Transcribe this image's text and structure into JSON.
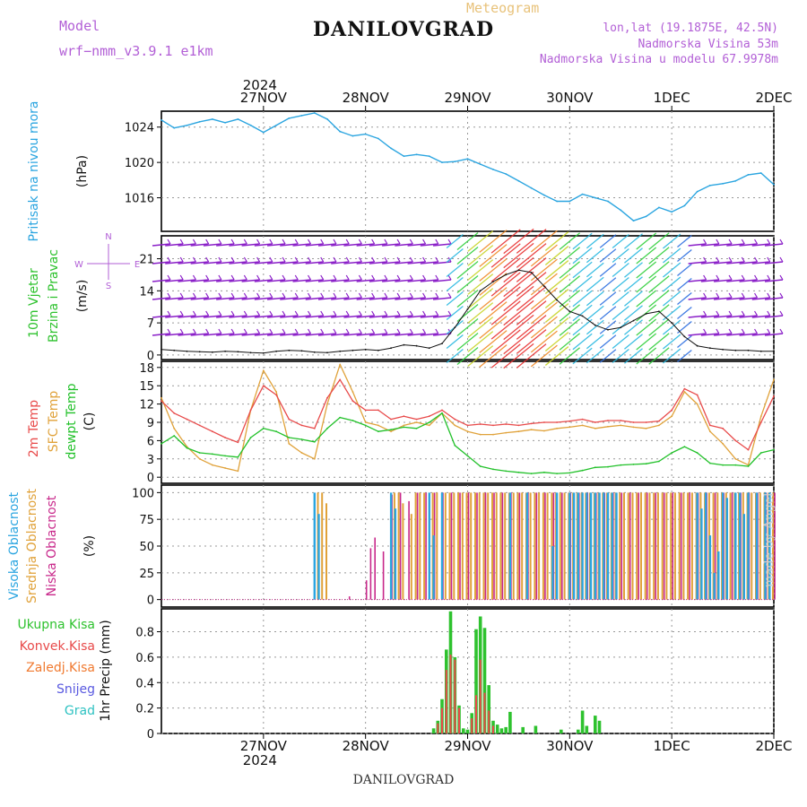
{
  "header": {
    "title": "DANILOVGRAD",
    "subtitle": "Meteogram",
    "model_label": "Model",
    "model_name": "wrf−nmm_v3.9.1  e1km",
    "location": "lon,lat (19.1875E, 42.5N)",
    "elevation": "Nadmorska Visina 53m",
    "model_elevation": "Nadmorska Visina u modelu 67.9978m"
  },
  "footer": {
    "label": "DANILOVGRAD"
  },
  "watermark": "made by Angel",
  "time_axis": {
    "year": "2024",
    "days": [
      "27NOV",
      "28NOV",
      "29NOV",
      "30NOV",
      "1DEC",
      "2DEC"
    ],
    "start_hours": -12,
    "end_hours": 132
  },
  "colors": {
    "pressure": "#2ba5e0",
    "t2m": "#e84a4a",
    "sfc": "#e0a23a",
    "dewpoint": "#22c12a",
    "high_cloud": "#2ba5e0",
    "mid_cloud": "#e0a23a",
    "low_cloud": "#c8278a",
    "total_precip": "#2ec22e",
    "conv_precip": "#e84a4a",
    "frozen_precip": "#f07a30",
    "snow": "#5a5ae0",
    "hail": "#2ec2c2"
  },
  "chart_data": [
    {
      "type": "line",
      "panel": "pressure",
      "ylabel_left": "Pritisak na nivou mora",
      "ylabel_unit": "(hPa)",
      "yticks": [
        "1024",
        "1020",
        "1016"
      ],
      "ylim": [
        1012.2,
        1025.8
      ],
      "x_hours": [
        -12,
        -9,
        -6,
        -3,
        0,
        3,
        6,
        9,
        12,
        15,
        18,
        21,
        24,
        27,
        30,
        33,
        36,
        39,
        42,
        45,
        48,
        51,
        54,
        57,
        60,
        63,
        66,
        69,
        72,
        75,
        78,
        81,
        84,
        87,
        90,
        93,
        96,
        99,
        102,
        105,
        108,
        111,
        114,
        117,
        120,
        123,
        126,
        129,
        132
      ],
      "series": [
        {
          "name": "Pritisak na nivou mora",
          "values": [
            1024.8,
            1023.9,
            1024.2,
            1024.6,
            1024.9,
            1024.5,
            1024.9,
            1024.2,
            1023.4,
            1024.2,
            1025.0,
            1025.3,
            1025.6,
            1024.9,
            1023.5,
            1023.0,
            1023.2,
            1022.7,
            1021.6,
            1020.7,
            1020.9,
            1020.7,
            1020.0,
            1020.1,
            1020.4,
            1019.8,
            1019.2,
            1018.7,
            1017.9,
            1017.1,
            1016.3,
            1015.6,
            1015.6,
            1016.4,
            1016.0,
            1015.6,
            1014.6,
            1013.4,
            1013.9,
            1014.9,
            1014.4,
            1015.1,
            1016.7,
            1017.4,
            1017.6,
            1017.9,
            1018.6,
            1018.8,
            1017.5
          ]
        }
      ]
    },
    {
      "type": "scatter",
      "panel": "wind",
      "ylabel_left": [
        "10m Vjetar",
        "Brzina i Pravac"
      ],
      "ylabel_unit": "(m/s)",
      "compass": {
        "n": "N",
        "s": "S",
        "e": "E",
        "w": "W"
      },
      "yticks": [
        "21",
        "14",
        "7",
        "0"
      ],
      "ylim": [
        -1,
        26
      ],
      "x_hours": [
        -12,
        -9,
        -6,
        -3,
        0,
        3,
        6,
        9,
        12,
        15,
        18,
        21,
        24,
        27,
        30,
        33,
        36,
        39,
        42,
        45,
        48,
        51,
        54,
        57,
        60,
        63,
        66,
        69,
        72,
        75,
        78,
        81,
        84,
        87,
        90,
        93,
        96,
        99,
        102,
        105,
        108,
        111,
        114,
        117,
        120,
        123,
        126,
        129,
        132
      ],
      "series": [
        {
          "name": "Brzina",
          "values": [
            1.2,
            1.0,
            0.8,
            0.7,
            0.6,
            0.8,
            0.7,
            0.5,
            0.4,
            0.8,
            1.0,
            0.9,
            0.6,
            0.5,
            0.8,
            1.0,
            1.2,
            1.0,
            1.5,
            2.2,
            2.0,
            1.5,
            2.5,
            6.0,
            10.0,
            14.0,
            16.0,
            17.5,
            18.5,
            18.0,
            15.0,
            12.0,
            9.5,
            8.5,
            6.5,
            5.5,
            6.0,
            7.5,
            9.0,
            9.5,
            7.0,
            4.0,
            2.0,
            1.5,
            1.2,
            1.0,
            1.0,
            0.8,
            0.8
          ]
        }
      ]
    },
    {
      "type": "line",
      "panel": "temperature",
      "ylabel_left": [
        "2m Temp",
        "SFC Temp",
        "dewpt Temp"
      ],
      "ylabel_unit": "(C)",
      "yticks": [
        "18",
        "15",
        "12",
        "9",
        "6",
        "3",
        "0"
      ],
      "ylim": [
        -1,
        19
      ],
      "x_hours": [
        -12,
        -9,
        -6,
        -3,
        0,
        3,
        6,
        9,
        12,
        15,
        18,
        21,
        24,
        27,
        30,
        33,
        36,
        39,
        42,
        45,
        48,
        51,
        54,
        57,
        60,
        63,
        66,
        69,
        72,
        75,
        78,
        81,
        84,
        87,
        90,
        93,
        96,
        99,
        102,
        105,
        108,
        111,
        114,
        117,
        120,
        123,
        126,
        129,
        132
      ],
      "series": [
        {
          "name": "2m Temp",
          "values": [
            12.5,
            10.5,
            9.5,
            8.5,
            7.5,
            6.5,
            5.7,
            11.0,
            15.0,
            13.5,
            9.5,
            8.5,
            8.0,
            13.0,
            16.0,
            12.5,
            11.0,
            11.0,
            9.5,
            10.0,
            9.5,
            10.0,
            11.0,
            9.5,
            8.5,
            8.7,
            8.5,
            8.7,
            8.5,
            8.8,
            9.0,
            9.0,
            9.2,
            9.5,
            9.0,
            9.3,
            9.3,
            9.0,
            9.0,
            9.2,
            11.0,
            14.5,
            13.5,
            8.5,
            8.0,
            6.0,
            4.5,
            9.0,
            13.3
          ]
        },
        {
          "name": "SFC Temp",
          "values": [
            13.0,
            8.0,
            5.0,
            3.0,
            2.0,
            1.5,
            1.0,
            11.0,
            17.5,
            14.0,
            5.5,
            4.0,
            3.0,
            12.0,
            18.5,
            14.0,
            9.0,
            8.5,
            7.5,
            8.5,
            9.0,
            8.5,
            10.5,
            8.5,
            7.5,
            7.0,
            7.0,
            7.3,
            7.5,
            7.8,
            7.6,
            8.0,
            8.2,
            8.5,
            8.0,
            8.3,
            8.5,
            8.2,
            8.0,
            8.5,
            10.0,
            14.0,
            12.0,
            7.5,
            5.5,
            3.0,
            2.0,
            10.0,
            16.0
          ]
        },
        {
          "name": "dewpt Temp",
          "values": [
            5.5,
            6.8,
            4.8,
            4.0,
            3.8,
            3.5,
            3.3,
            6.5,
            8.0,
            7.5,
            6.5,
            6.2,
            5.8,
            8.0,
            9.8,
            9.3,
            8.5,
            7.5,
            7.8,
            8.2,
            8.0,
            9.0,
            10.5,
            5.2,
            3.5,
            1.8,
            1.3,
            1.0,
            0.8,
            0.6,
            0.8,
            0.6,
            0.7,
            1.1,
            1.6,
            1.7,
            2.0,
            2.1,
            2.2,
            2.6,
            4.0,
            5.0,
            4.0,
            2.3,
            2.0,
            2.0,
            1.8,
            4.0,
            4.5
          ]
        }
      ]
    },
    {
      "type": "bar",
      "panel": "cloud",
      "ylabel_left": [
        "Visoka Oblacnost",
        "Srednja Oblacnost",
        "Niska Oblacnost"
      ],
      "ylabel_unit": "(%)",
      "yticks": [
        "100",
        "75",
        "50",
        "25",
        "0"
      ],
      "ylim": [
        -7,
        107
      ],
      "series": [
        {
          "name": "Visoka Oblacnost",
          "x_hours": [
            24,
            25,
            42,
            43,
            51,
            52,
            54,
            70,
            74,
            80,
            81,
            84,
            85,
            86,
            87,
            88,
            89,
            90,
            91,
            92,
            93,
            94,
            95,
            114,
            115,
            116,
            117,
            118,
            119,
            120,
            121,
            123,
            124,
            125,
            126,
            128,
            130,
            131
          ],
          "values": [
            100,
            80,
            100,
            85,
            100,
            60,
            100,
            100,
            100,
            50,
            100,
            100,
            100,
            100,
            100,
            100,
            100,
            100,
            100,
            100,
            100,
            100,
            100,
            100,
            85,
            100,
            60,
            25,
            45,
            100,
            95,
            100,
            100,
            80,
            100,
            100,
            100,
            100
          ]
        },
        {
          "name": "Srednja Oblacnost",
          "x_hours": [
            25,
            26,
            27,
            43,
            44,
            45,
            47,
            48,
            49,
            50,
            52,
            53,
            55,
            56,
            57,
            58,
            59,
            60,
            61,
            62,
            63,
            64,
            65,
            66,
            67,
            68,
            69,
            70,
            71,
            72,
            73,
            74,
            75,
            76,
            77,
            78,
            79,
            80,
            81,
            82,
            83,
            84,
            85,
            86,
            87,
            88,
            89,
            90,
            91,
            92,
            93,
            94,
            95,
            96,
            97,
            98,
            99,
            100,
            101,
            102,
            103,
            104,
            105,
            106,
            107,
            108,
            109,
            110,
            111,
            112,
            113,
            114,
            115,
            116,
            117,
            118,
            119,
            120,
            121,
            122,
            123,
            124,
            125,
            126,
            127,
            128,
            129,
            130,
            131,
            132
          ],
          "values": [
            100,
            100,
            90,
            100,
            100,
            90,
            80,
            100,
            100,
            100,
            100,
            100,
            100,
            100,
            100,
            100,
            100,
            100,
            100,
            100,
            100,
            100,
            100,
            100,
            100,
            100,
            100,
            100,
            100,
            100,
            100,
            100,
            100,
            100,
            100,
            100,
            100,
            100,
            100,
            100,
            100,
            100,
            100,
            100,
            100,
            100,
            100,
            100,
            100,
            100,
            100,
            100,
            100,
            100,
            100,
            100,
            100,
            100,
            100,
            100,
            100,
            100,
            100,
            100,
            100,
            100,
            100,
            100,
            100,
            100,
            100,
            100,
            100,
            100,
            100,
            100,
            100,
            100,
            100,
            100,
            100,
            100,
            100,
            100,
            100,
            100,
            100,
            100,
            100,
            100
          ]
        },
        {
          "name": "Niska Oblacnost",
          "x_hours": [
            32,
            36,
            37,
            38,
            40,
            42,
            44,
            46,
            48,
            50,
            52,
            54,
            56,
            58,
            60,
            62,
            64,
            66,
            68,
            70,
            72,
            74,
            76,
            78,
            80,
            82,
            84,
            86,
            88,
            90,
            92,
            94,
            96,
            98,
            100,
            102,
            104,
            106,
            108,
            110,
            112,
            114,
            116,
            118,
            120,
            122,
            124,
            126,
            128,
            130,
            132
          ],
          "values": [
            3,
            18,
            48,
            58,
            45,
            98,
            100,
            92,
            100,
            100,
            100,
            100,
            100,
            100,
            100,
            100,
            100,
            100,
            100,
            100,
            100,
            100,
            100,
            100,
            100,
            100,
            100,
            100,
            100,
            100,
            100,
            100,
            100,
            100,
            100,
            100,
            100,
            100,
            100,
            100,
            100,
            100,
            100,
            100,
            100,
            100,
            100,
            100,
            100,
            100,
            100
          ]
        }
      ]
    },
    {
      "type": "bar",
      "panel": "precip",
      "legend": [
        "Ukupna Kisa",
        "Konvek.Kisa",
        "Zaledj.Kisa",
        "Snijeg",
        "Grad"
      ],
      "ylabel_unit": "1hr Precip (mm)",
      "yticks": [
        "0.8",
        "0.6",
        "0.4",
        "0.2",
        "0"
      ],
      "ylim": [
        0,
        0.98
      ],
      "series": [
        {
          "name": "Ukupna Kisa",
          "x_hours": [
            52,
            53,
            54,
            55,
            56,
            57,
            58,
            59,
            60,
            61,
            62,
            63,
            64,
            65,
            66,
            67,
            68,
            69,
            70,
            73,
            76,
            82,
            86,
            87,
            88,
            90,
            91
          ],
          "values": [
            0.04,
            0.1,
            0.27,
            0.66,
            0.96,
            0.6,
            0.22,
            0.04,
            0.03,
            0.16,
            0.82,
            0.92,
            0.83,
            0.38,
            0.1,
            0.07,
            0.04,
            0.05,
            0.17,
            0.05,
            0.06,
            0.03,
            0.03,
            0.18,
            0.06,
            0.14,
            0.1
          ]
        },
        {
          "name": "Konvek.Kisa",
          "x_hours": [
            53,
            54,
            55,
            56,
            57,
            58,
            61,
            62,
            63,
            64,
            65,
            66
          ],
          "values": [
            0.08,
            0.2,
            0.5,
            0.62,
            0.58,
            0.2,
            0.12,
            0.3,
            0.58,
            0.32,
            0.18,
            0.06
          ]
        }
      ]
    }
  ]
}
